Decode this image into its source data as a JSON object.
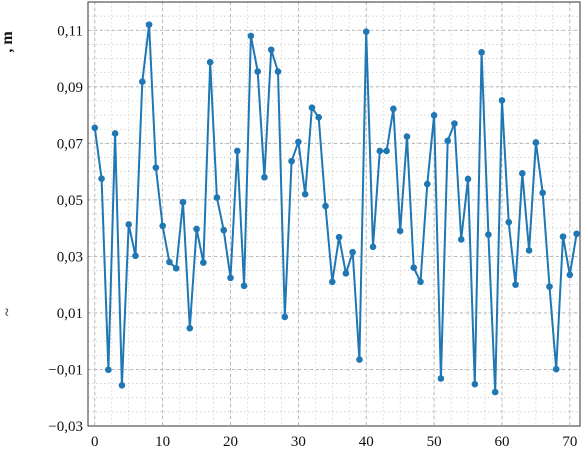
{
  "chart_data": {
    "type": "line",
    "title": "",
    "xlabel": "",
    "ylabel": ", m",
    "ylabel_fragment": "~",
    "xlim": [
      -1,
      71.5
    ],
    "ylim": [
      -0.03,
      0.12
    ],
    "grid": true,
    "legend": "none",
    "x_ticks": [
      0,
      10,
      20,
      30,
      40,
      50,
      60,
      70
    ],
    "x_tick_labels": [
      "0",
      "10",
      "20",
      "30",
      "40",
      "50",
      "60",
      "70"
    ],
    "y_ticks": [
      -0.03,
      -0.01,
      0.01,
      0.03,
      0.05,
      0.07,
      0.09,
      0.11
    ],
    "y_tick_labels": [
      "−0,03",
      "−0,01",
      "0,01",
      "0,03",
      "0,05",
      "0,07",
      "0,09",
      "0,11"
    ],
    "series": [
      {
        "color": "#1f77b4",
        "x": [
          0,
          1,
          2,
          3,
          4,
          5,
          6,
          7,
          8,
          9,
          10,
          11,
          12,
          13,
          14,
          15,
          16,
          17,
          18,
          19,
          20,
          21,
          22,
          23,
          24,
          25,
          26,
          27,
          28,
          29,
          30,
          31,
          32,
          33,
          34,
          35,
          36,
          37,
          38,
          39,
          40,
          41,
          42,
          43,
          44,
          45,
          46,
          47,
          48,
          49,
          50,
          51,
          52,
          53,
          54,
          55,
          56,
          57,
          58,
          59,
          60,
          61,
          62,
          63,
          64,
          65,
          66,
          67,
          68,
          69,
          70,
          71
        ],
        "y": [
          0.0755,
          0.0575,
          -0.0101,
          0.0735,
          -0.0156,
          0.0413,
          0.0302,
          0.0918,
          0.112,
          0.0614,
          0.0408,
          0.028,
          0.0258,
          0.0492,
          0.0046,
          0.0397,
          0.0278,
          0.0987,
          0.0508,
          0.0393,
          0.0224,
          0.0673,
          0.0196,
          0.108,
          0.0954,
          0.058,
          0.1031,
          0.0954,
          0.0086,
          0.0637,
          0.0705,
          0.052,
          0.0826,
          0.0792,
          0.0478,
          0.021,
          0.0368,
          0.024,
          0.0315,
          -0.0065,
          0.1095,
          0.0334,
          0.0673,
          0.0673,
          0.0822,
          0.039,
          0.0724,
          0.026,
          0.021,
          0.0556,
          0.0799,
          -0.0132,
          0.0709,
          0.077,
          0.036,
          0.0574,
          -0.0152,
          0.1022,
          0.0377,
          -0.018,
          0.0852,
          0.0421,
          0.02,
          0.0594,
          0.0321,
          0.0703,
          0.0525,
          0.0193,
          -0.0099,
          0.037,
          0.0235,
          0.038
        ]
      }
    ]
  }
}
